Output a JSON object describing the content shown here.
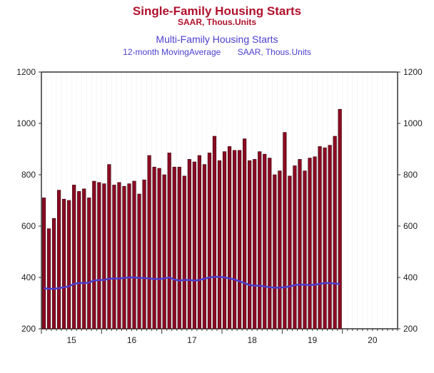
{
  "chart_data": {
    "type": "bar",
    "title": "Single-Family Housing Starts",
    "title_units": "SAAR, Thous.Units",
    "subtitle": "Multi-Family Housing Starts",
    "subtitle_note": "12-month MovingAverage",
    "subtitle_units": "SAAR, Thous.Units",
    "ylim": [
      200,
      1200
    ],
    "yticks": [
      200,
      400,
      600,
      800,
      1000,
      1200
    ],
    "xtick_labels": [
      "15",
      "16",
      "17",
      "18",
      "19",
      "20"
    ],
    "x_range_months": [
      "2015-01",
      "2020-11"
    ],
    "series": [
      {
        "name": "Single-Family Housing Starts",
        "type": "bar",
        "color": "#8b0a22",
        "values": [
          710,
          590,
          630,
          740,
          705,
          700,
          760,
          735,
          745,
          710,
          775,
          770,
          765,
          840,
          760,
          770,
          755,
          765,
          775,
          725,
          780,
          875,
          830,
          825,
          800,
          885,
          830,
          830,
          795,
          860,
          850,
          875,
          840,
          885,
          950,
          855,
          890,
          910,
          895,
          895,
          940,
          855,
          860,
          890,
          880,
          865,
          800,
          815,
          965,
          795,
          835,
          860,
          815,
          865,
          870,
          910,
          905,
          915,
          950,
          1055
        ]
      },
      {
        "name": "Multi-Family Housing Starts, 12-month Moving Average",
        "type": "line",
        "color": "#4b3fcf",
        "values": [
          358,
          356,
          356,
          358,
          362,
          365,
          375,
          378,
          378,
          380,
          388,
          390,
          390,
          395,
          396,
          396,
          398,
          400,
          400,
          398,
          398,
          396,
          394,
          394,
          396,
          400,
          392,
          388,
          390,
          390,
          388,
          390,
          395,
          400,
          402,
          402,
          400,
          396,
          392,
          385,
          378,
          370,
          368,
          368,
          365,
          362,
          360,
          360,
          362,
          365,
          370,
          372,
          372,
          370,
          372,
          375,
          378,
          378,
          376,
          375
        ]
      }
    ]
  }
}
